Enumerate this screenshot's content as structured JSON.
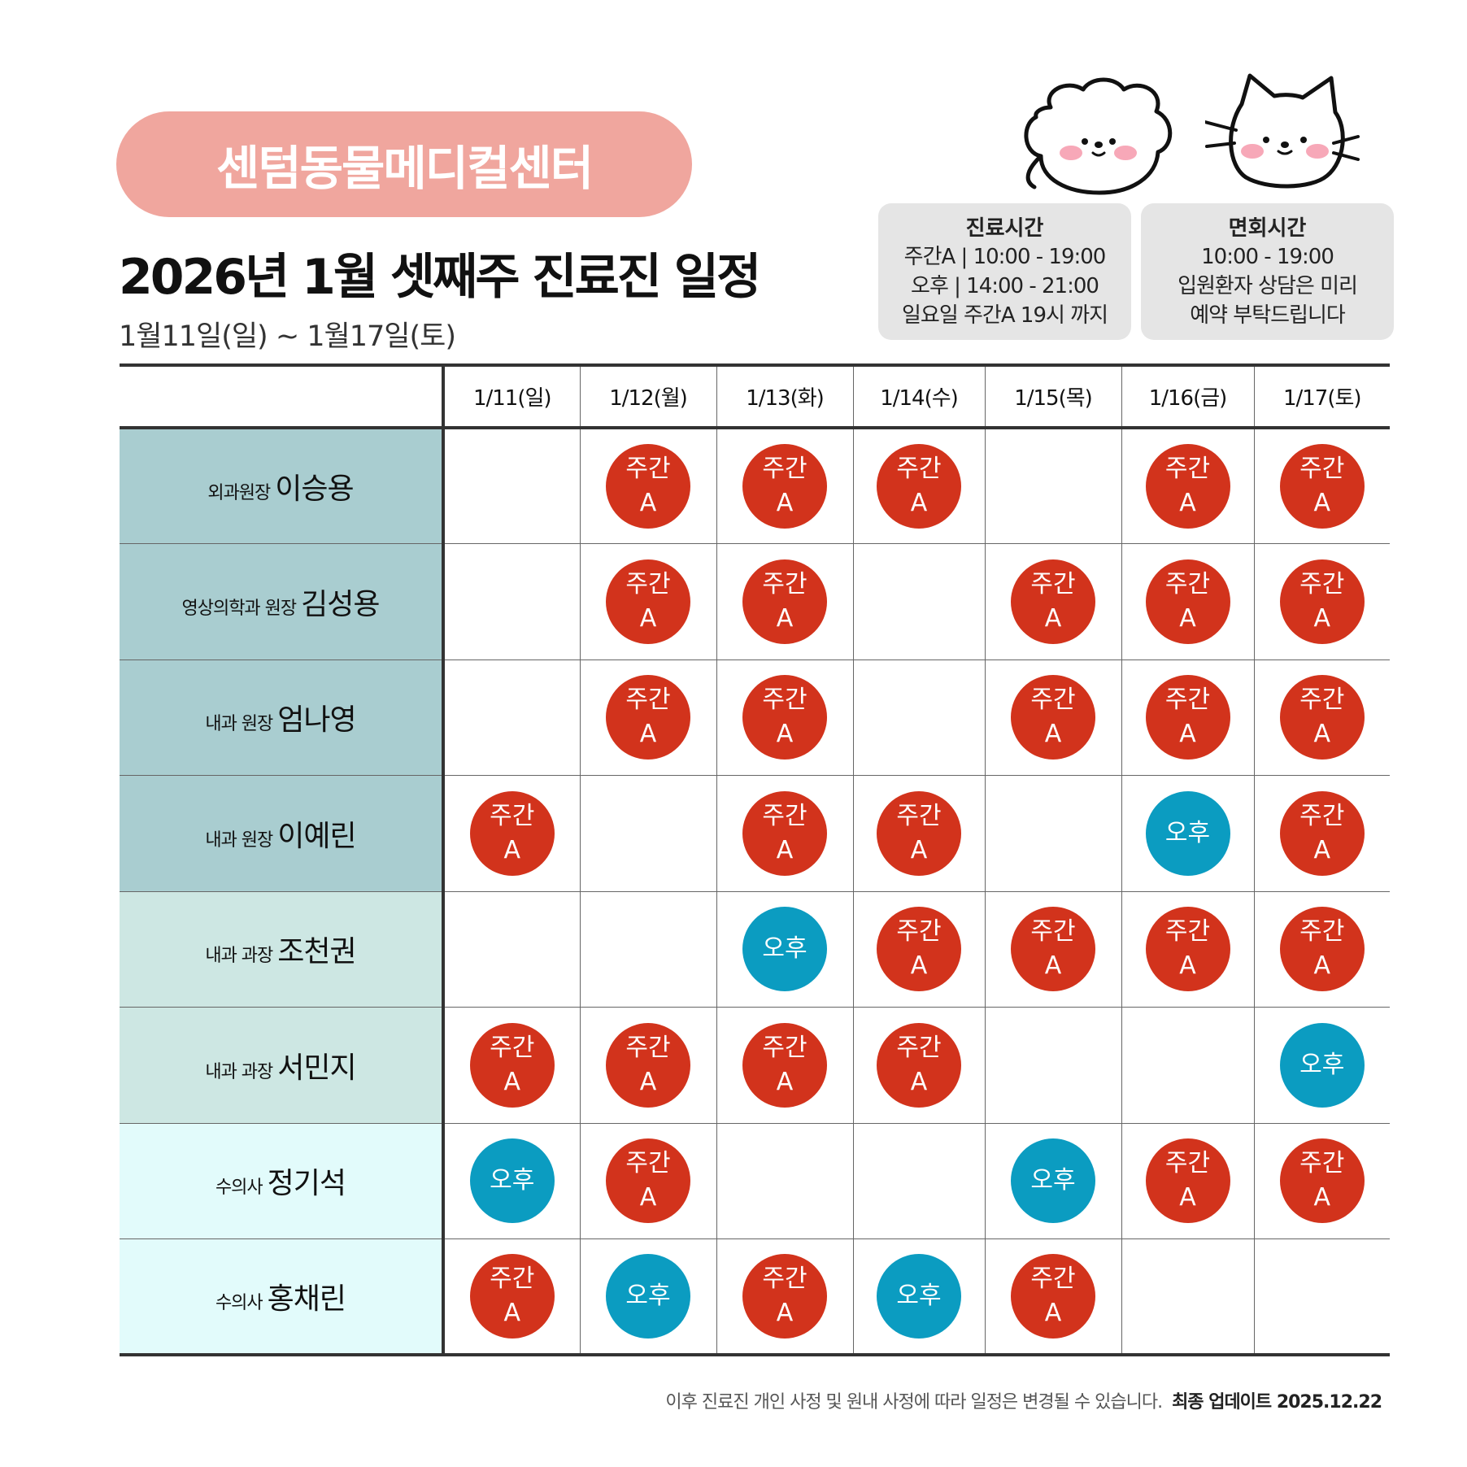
{
  "brand": {
    "name": "센텀동물메디컬센터",
    "color": "#f0a69e"
  },
  "title": "2026년 1월 셋째주 진료진 일정",
  "date_range": "1월11일(일) ~ 1월17일(토)",
  "info_boxes": {
    "hours": {
      "title": "진료시간",
      "lines": [
        "주간A | 10:00 - 19:00",
        "오후 | 14:00 - 21:00",
        "일요일 주간A 19시 까지"
      ]
    },
    "visit": {
      "title": "면회시간",
      "lines": [
        "10:00 - 19:00",
        "입원환자 상담은 미리",
        "예약 부탁드립니다"
      ]
    }
  },
  "icons": {
    "dog": "dog-face-icon",
    "cat": "cat-face-icon"
  },
  "days": [
    "1/11(일)",
    "1/12(월)",
    "1/13(화)",
    "1/14(수)",
    "1/15(목)",
    "1/16(금)",
    "1/17(토)"
  ],
  "shift_labels": {
    "A_line1": "주간",
    "A_line2": "A",
    "P": "오후"
  },
  "colors": {
    "shift_A": "#d2331c",
    "shift_P": "#0b9cc1"
  },
  "doctors": [
    {
      "role": "외과원장",
      "name": "이승용",
      "bg": "#a9cdd0",
      "shifts": [
        "",
        "A",
        "A",
        "A",
        "",
        "A",
        "A"
      ]
    },
    {
      "role": "영상의학과 원장",
      "name": "김성용",
      "bg": "#a9cdd0",
      "shifts": [
        "",
        "A",
        "A",
        "",
        "A",
        "A",
        "A"
      ]
    },
    {
      "role": "내과 원장",
      "name": "엄나영",
      "bg": "#a9cdd0",
      "shifts": [
        "",
        "A",
        "A",
        "",
        "A",
        "A",
        "A"
      ]
    },
    {
      "role": "내과 원장",
      "name": "이예린",
      "bg": "#a9cdd0",
      "shifts": [
        "A",
        "",
        "A",
        "A",
        "",
        "P",
        "A"
      ]
    },
    {
      "role": "내과 과장",
      "name": "조천권",
      "bg": "#cde7e3",
      "shifts": [
        "",
        "",
        "P",
        "A",
        "A",
        "A",
        "A"
      ]
    },
    {
      "role": "내과 과장",
      "name": "서민지",
      "bg": "#cde7e3",
      "shifts": [
        "A",
        "A",
        "A",
        "A",
        "",
        "",
        "P"
      ]
    },
    {
      "role": "수의사",
      "name": "정기석",
      "bg": "#e2fbfb",
      "shifts": [
        "P",
        "A",
        "",
        "",
        "P",
        "A",
        "A"
      ]
    },
    {
      "role": "수의사",
      "name": "홍채린",
      "bg": "#e2fbfb",
      "shifts": [
        "A",
        "P",
        "A",
        "P",
        "A",
        "",
        ""
      ]
    }
  ],
  "footer": {
    "note": "이후 진료진 개인 사정 및 원내 사정에 따라 일정은 변경될 수 있습니다.",
    "update": "최종 업데이트  2025.12.22"
  }
}
